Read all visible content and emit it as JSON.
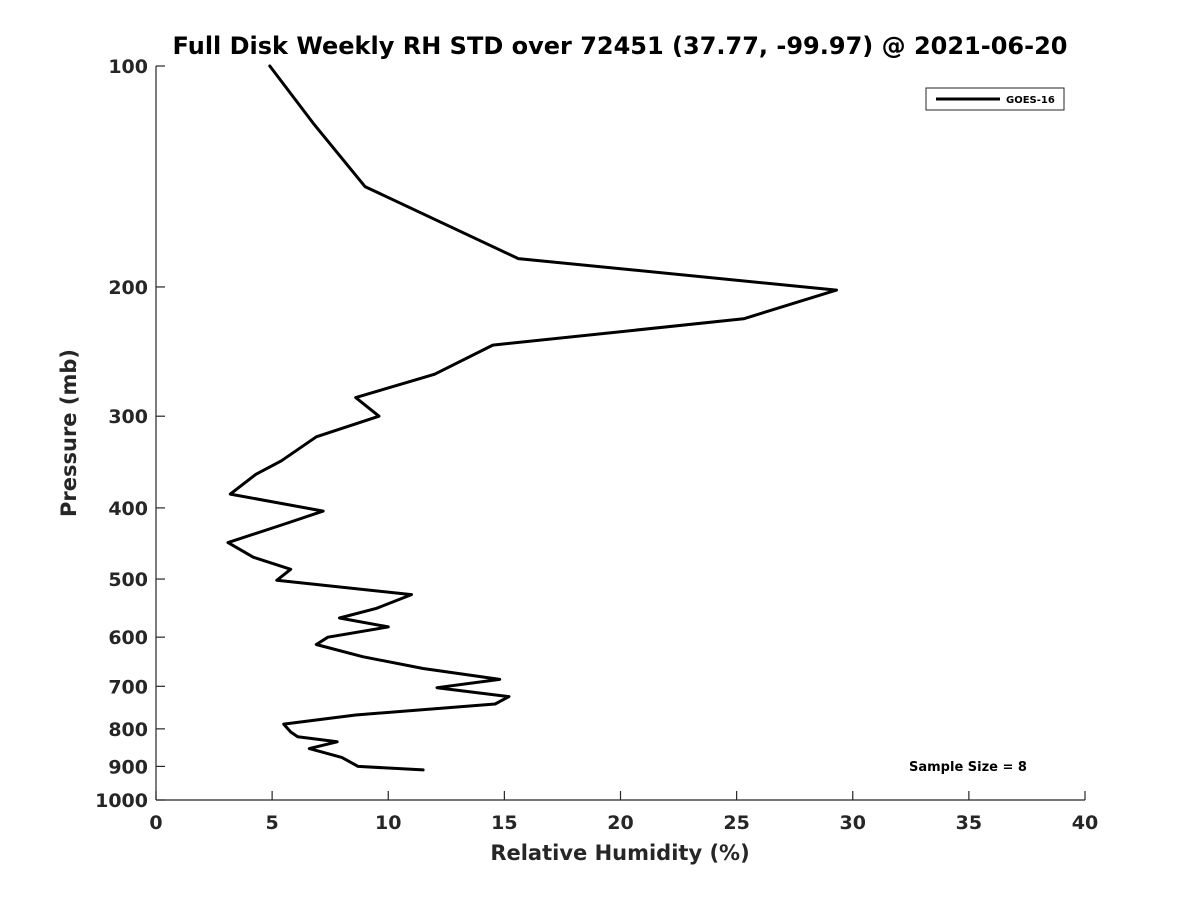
{
  "chart_data": {
    "type": "line",
    "title": "Full Disk Weekly RH STD over 72451 (37.77, -99.97) @ 2021-06-20",
    "xlabel": "Relative Humidity (%)",
    "ylabel": "Pressure (mb)",
    "xlim": [
      0,
      40
    ],
    "ylim": [
      100,
      1000
    ],
    "y_scale": "log",
    "y_reversed": true,
    "grid": false,
    "legend_position": "top-right",
    "x_ticks": [
      0,
      5,
      10,
      15,
      20,
      25,
      30,
      35,
      40
    ],
    "x_tick_labels": [
      "0",
      "5",
      "10",
      "15",
      "20",
      "25",
      "30",
      "35",
      "40"
    ],
    "y_ticks": [
      100,
      200,
      300,
      400,
      500,
      600,
      700,
      800,
      900,
      1000
    ],
    "y_tick_labels": [
      "100",
      "200",
      "300",
      "400",
      "500",
      "600",
      "700",
      "800",
      "900",
      "1000"
    ],
    "series": [
      {
        "name": "GOES-16",
        "color": "#000000",
        "x": [
          4.9,
          6.8,
          9.0,
          15.6,
          29.3,
          25.3,
          14.5,
          12.0,
          8.6,
          9.6,
          6.9,
          5.4,
          4.3,
          3.2,
          7.2,
          5.6,
          3.1,
          4.2,
          5.8,
          5.2,
          11.0,
          9.5,
          7.9,
          10.0,
          7.4,
          6.9,
          8.9,
          11.5,
          14.8,
          12.1,
          15.2,
          14.6,
          8.6,
          5.5,
          5.8,
          6.1,
          7.8,
          6.6,
          8.0,
          8.7,
          11.5
        ],
        "y": [
          100,
          120,
          146,
          183,
          202,
          221,
          240,
          263,
          283,
          300,
          320,
          345,
          360,
          383,
          404,
          420,
          446,
          467,
          485,
          502,
          525,
          548,
          565,
          581,
          600,
          614,
          638,
          662,
          685,
          703,
          723,
          740,
          766,
          788,
          808,
          820,
          833,
          851,
          875,
          900,
          910
        ]
      }
    ],
    "annotations": [
      "Sample Size = 8"
    ]
  }
}
